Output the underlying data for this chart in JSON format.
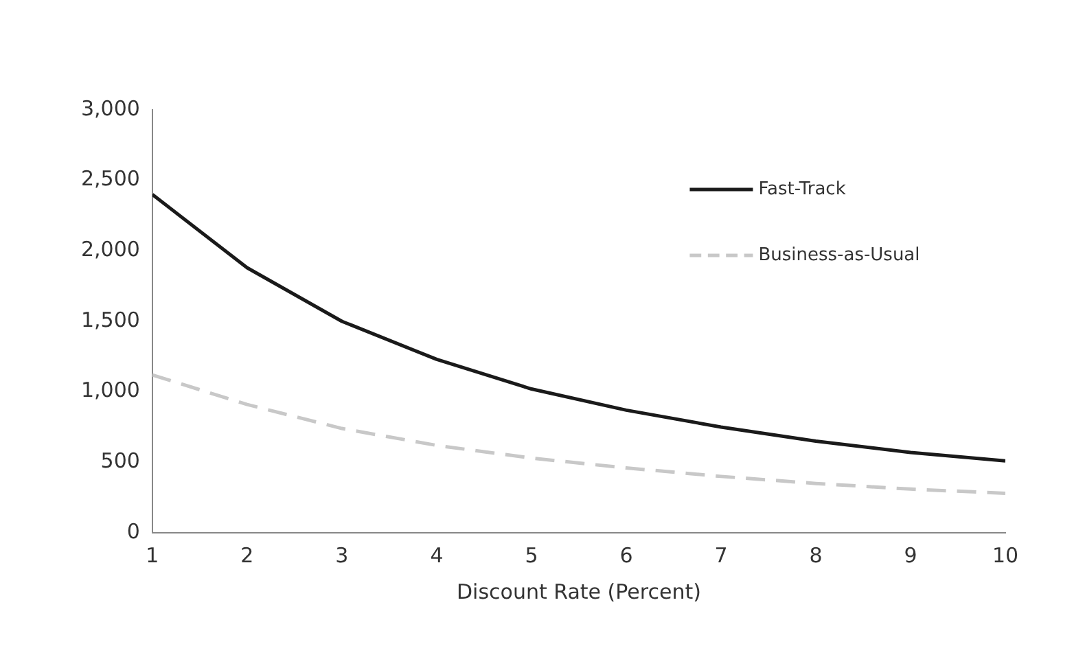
{
  "chart_data": {
    "type": "line",
    "xlabel": "Discount Rate (Percent)",
    "x": [
      1,
      2,
      3,
      4,
      5,
      6,
      7,
      8,
      9,
      10
    ],
    "xlim": [
      1,
      10
    ],
    "xticks": [
      1,
      2,
      3,
      4,
      5,
      6,
      7,
      8,
      9,
      10
    ],
    "ylim": [
      0,
      3000
    ],
    "yticks": [
      {
        "value": 0,
        "label": "0"
      },
      {
        "value": 500,
        "label": "500"
      },
      {
        "value": 1000,
        "label": "1,000"
      },
      {
        "value": 1500,
        "label": "1,500"
      },
      {
        "value": 2000,
        "label": "2,000"
      },
      {
        "value": 2500,
        "label": "2,500"
      },
      {
        "value": 3000,
        "label": "3,000"
      }
    ],
    "series": [
      {
        "name": "Fast-Track",
        "color": "#1a1a1a",
        "line_style": "solid",
        "values": [
          2400,
          1880,
          1500,
          1230,
          1020,
          870,
          750,
          650,
          570,
          510
        ]
      },
      {
        "name": "Business-as-Usual",
        "color": "#c8c8c8",
        "line_style": "dashed",
        "values": [
          1120,
          910,
          740,
          620,
          530,
          460,
          400,
          350,
          310,
          280
        ]
      }
    ],
    "legend": "top right",
    "grid": false,
    "marker": "none"
  }
}
